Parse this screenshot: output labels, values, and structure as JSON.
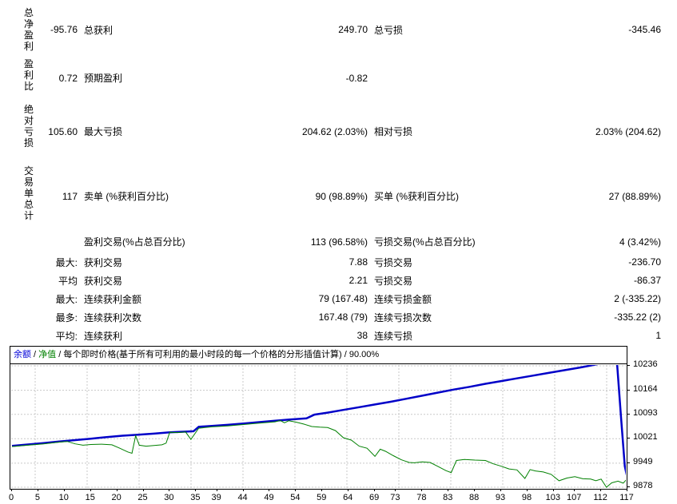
{
  "report": {
    "groups": [
      {
        "side_label": "总净盈利",
        "rows": [
          {
            "v1": "-95.76",
            "l1": "总获利",
            "v2": "249.70",
            "l2": "总亏损",
            "v3": "-345.46"
          }
        ]
      },
      {
        "side_label": "盈利比",
        "rows": [
          {
            "v1": "0.72",
            "l1": "预期盈利",
            "v2": "-0.82",
            "l2": "",
            "v3": ""
          }
        ]
      },
      {
        "side_label": "绝对亏损",
        "rows": [
          {
            "v1": "105.60",
            "l1": "最大亏损",
            "v2": "204.62 (2.03%)",
            "l2": "相对亏损",
            "v3": "2.03% (204.62)"
          }
        ]
      },
      {
        "side_label": "交易单总计",
        "rows": [
          {
            "v1": "117",
            "l1": "卖单 (%获利百分比)",
            "v2": "90 (98.89%)",
            "l2": "买单 (%获利百分比)",
            "v3": "27 (88.89%)"
          }
        ]
      },
      {
        "side_label": "",
        "rows": [
          {
            "v1": "",
            "l1": "盈利交易(%占总百分比)",
            "v2": "113 (96.58%)",
            "l2": "亏损交易(%占总百分比)",
            "v3": "4 (3.42%)"
          },
          {
            "v1": "最大:",
            "l1": "获利交易",
            "v2": "7.88",
            "l2": "亏损交易",
            "v3": "-236.70"
          },
          {
            "v1": "平均",
            "l1": "获利交易",
            "v2": "2.21",
            "l2": "亏损交易",
            "v3": "-86.37"
          },
          {
            "v1": "最大:",
            "l1": "连续获利金额",
            "v2": "79 (167.48)",
            "l2": "连续亏损金额",
            "v3": "2 (-335.22)"
          },
          {
            "v1": "最多:",
            "l1": "连续获利次数",
            "v2": "167.48 (79)",
            "l2": "连续亏损次数",
            "v3": "-335.22 (2)"
          },
          {
            "v1": "平均:",
            "l1": "连续获利",
            "v2": "38",
            "l2": "连续亏损",
            "v3": "1"
          }
        ]
      }
    ]
  },
  "chart": {
    "legend": {
      "balance_label": "余额",
      "equity_label": "净值",
      "separator": " / ",
      "model_label": "每个即时价格(基于所有可利用的最小时段的每一个价格的分形插值计算)",
      "quality_label": "90.00%"
    },
    "colors": {
      "balance": "#0000c8",
      "equity": "#008000",
      "grid": "#c8c8c8",
      "legend_balance": "#0000d8",
      "legend_equity": "#008000"
    }
  },
  "chart_data": {
    "type": "line",
    "title": "余额 / 净值 / 每个即时价格(基于所有可利用的最小时段的每一个价格的分形插值计算) / 90.00%",
    "xlabel": "",
    "ylabel": "",
    "xlim": [
      0,
      117
    ],
    "ylim": [
      9878,
      10236
    ],
    "x_ticks": [
      0,
      5,
      10,
      15,
      20,
      25,
      30,
      35,
      39,
      44,
      49,
      54,
      59,
      64,
      69,
      73,
      78,
      83,
      88,
      93,
      98,
      103,
      107,
      112,
      117
    ],
    "y_ticks": [
      10236,
      10164,
      10093,
      10021,
      9949,
      9878
    ],
    "legend_position": "top",
    "grid": true,
    "series": [
      {
        "name": "余额",
        "color": "#0000c8",
        "width": 2.5,
        "points": [
          [
            0,
            10000
          ],
          [
            3,
            10004
          ],
          [
            6,
            10008
          ],
          [
            9,
            10013
          ],
          [
            12,
            10017
          ],
          [
            15,
            10021
          ],
          [
            18,
            10026
          ],
          [
            21,
            10030
          ],
          [
            24,
            10033
          ],
          [
            27,
            10036
          ],
          [
            30,
            10040
          ],
          [
            33,
            10042
          ],
          [
            34.5,
            10043
          ],
          [
            35.5,
            10056
          ],
          [
            38,
            10059
          ],
          [
            41,
            10062
          ],
          [
            44,
            10066
          ],
          [
            47,
            10070
          ],
          [
            50,
            10074
          ],
          [
            53,
            10078
          ],
          [
            56,
            10081
          ],
          [
            57.5,
            10092
          ],
          [
            60,
            10098
          ],
          [
            63,
            10106
          ],
          [
            66,
            10114
          ],
          [
            69,
            10122
          ],
          [
            72,
            10130
          ],
          [
            75,
            10139
          ],
          [
            78,
            10148
          ],
          [
            81,
            10157
          ],
          [
            84,
            10166
          ],
          [
            87,
            10174
          ],
          [
            90,
            10183
          ],
          [
            93,
            10191
          ],
          [
            96,
            10199
          ],
          [
            99,
            10207
          ],
          [
            102,
            10215
          ],
          [
            105,
            10223
          ],
          [
            108,
            10231
          ],
          [
            110,
            10237
          ],
          [
            112,
            10243
          ],
          [
            113.5,
            10248
          ],
          [
            115,
            10250
          ],
          [
            115.8,
            10080
          ],
          [
            116.5,
            9940
          ],
          [
            117,
            9904
          ]
        ]
      },
      {
        "name": "净值",
        "color": "#008000",
        "width": 1,
        "points": [
          [
            0,
            9998
          ],
          [
            3,
            10002
          ],
          [
            6,
            10006
          ],
          [
            9,
            10011
          ],
          [
            10.5,
            10013
          ],
          [
            12,
            10006
          ],
          [
            13.5,
            10002
          ],
          [
            15,
            10004
          ],
          [
            17,
            10005
          ],
          [
            19,
            10003
          ],
          [
            20.5,
            9993
          ],
          [
            22,
            9982
          ],
          [
            22.8,
            9978
          ],
          [
            23.5,
            10030
          ],
          [
            24.2,
            10002
          ],
          [
            25.5,
            9999
          ],
          [
            27,
            10001
          ],
          [
            28.5,
            10003
          ],
          [
            29.3,
            10008
          ],
          [
            30,
            10040
          ],
          [
            31.5,
            10039
          ],
          [
            33,
            10041
          ],
          [
            34,
            10019
          ],
          [
            35.5,
            10052
          ],
          [
            38,
            10056
          ],
          [
            41,
            10059
          ],
          [
            44,
            10063
          ],
          [
            47,
            10067
          ],
          [
            50,
            10071
          ],
          [
            51,
            10075
          ],
          [
            51.8,
            10068
          ],
          [
            52.6,
            10074
          ],
          [
            54,
            10070
          ],
          [
            55.5,
            10064
          ],
          [
            57,
            10057
          ],
          [
            58.5,
            10055
          ],
          [
            60,
            10054
          ],
          [
            61.5,
            10045
          ],
          [
            63,
            10024
          ],
          [
            64.5,
            10017
          ],
          [
            66,
            9999
          ],
          [
            67.5,
            9993
          ],
          [
            69,
            9969
          ],
          [
            70,
            9990
          ],
          [
            71,
            9984
          ],
          [
            72.5,
            9971
          ],
          [
            74,
            9959
          ],
          [
            75.5,
            9951
          ],
          [
            76.5,
            9950
          ],
          [
            78,
            9953
          ],
          [
            79.5,
            9951
          ],
          [
            81,
            9939
          ],
          [
            82.5,
            9927
          ],
          [
            83.5,
            9921
          ],
          [
            84.5,
            9957
          ],
          [
            86,
            9960
          ],
          [
            88,
            9958
          ],
          [
            90,
            9957
          ],
          [
            91.5,
            9947
          ],
          [
            93,
            9940
          ],
          [
            94.5,
            9932
          ],
          [
            96,
            9929
          ],
          [
            97.5,
            9904
          ],
          [
            98.5,
            9930
          ],
          [
            99.5,
            9926
          ],
          [
            101,
            9923
          ],
          [
            102.5,
            9916
          ],
          [
            104,
            9897
          ],
          [
            105.5,
            9905
          ],
          [
            107,
            9909
          ],
          [
            108.5,
            9903
          ],
          [
            110,
            9902
          ],
          [
            111,
            9897
          ],
          [
            112,
            9902
          ],
          [
            113,
            9878
          ],
          [
            114,
            9891
          ],
          [
            115.2,
            9896
          ],
          [
            116.2,
            9890
          ],
          [
            117,
            9904
          ]
        ]
      }
    ]
  }
}
